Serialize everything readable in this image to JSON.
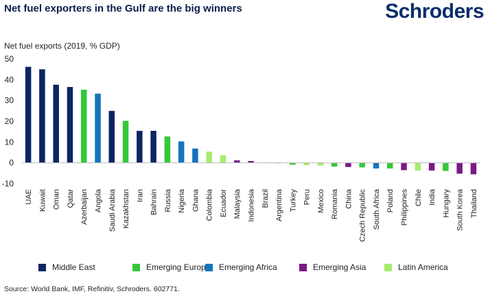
{
  "header": {
    "title": "Net fuel exporters in the Gulf are the big winners",
    "logo": "Schroders"
  },
  "footer": {
    "source": "Source: World Bank, IMF, Refinitiv, Schroders. 602771."
  },
  "colors": {
    "Middle East": "#0c2561",
    "Emerging Europe": "#35c73a",
    "Emerging Africa": "#1474bd",
    "Emerging Asia": "#7d1a85",
    "Latin America": "#a6ec6c"
  },
  "chart_data": {
    "type": "bar",
    "ylabel": "Net fuel exports (2019, % GDP)",
    "ylim": [
      -10,
      50
    ],
    "yticks": [
      50,
      40,
      30,
      20,
      10,
      0,
      -10
    ],
    "grid": false,
    "legend_position": "bottom",
    "legend": [
      "Middle East",
      "Emerging Europe",
      "Emerging Africa",
      "Emerging Asia",
      "Latin America"
    ],
    "categories": [
      "UAE",
      "Kuwait",
      "Oman",
      "Qatar",
      "Azerbaijan",
      "Angola",
      "Saudi Arabia",
      "Kazakhstan",
      "Iran",
      "Bahrain",
      "Russia",
      "Nigeria",
      "Ghana",
      "Colombia",
      "Ecuador",
      "Malaysia",
      "Indonesia",
      "Brazil",
      "Argentina",
      "Turkey",
      "Peru",
      "Mexico",
      "Romania",
      "China",
      "Czech Republic",
      "South Africa",
      "Poland",
      "Philippines",
      "Chile",
      "India",
      "Hungary",
      "South Korea",
      "Thailand"
    ],
    "groups": [
      "Middle East",
      "Middle East",
      "Middle East",
      "Middle East",
      "Emerging Europe",
      "Emerging Africa",
      "Middle East",
      "Emerging Europe",
      "Middle East",
      "Middle East",
      "Emerging Europe",
      "Emerging Africa",
      "Emerging Africa",
      "Latin America",
      "Latin America",
      "Emerging Asia",
      "Emerging Asia",
      "Latin America",
      "Latin America",
      "Emerging Europe",
      "Latin America",
      "Latin America",
      "Emerging Europe",
      "Emerging Asia",
      "Emerging Europe",
      "Emerging Africa",
      "Emerging Europe",
      "Emerging Asia",
      "Latin America",
      "Emerging Asia",
      "Emerging Europe",
      "Emerging Asia",
      "Emerging Asia"
    ],
    "values": [
      46.2,
      45.0,
      37.6,
      36.5,
      35.2,
      33.3,
      25.0,
      20.2,
      15.4,
      15.4,
      12.7,
      10.3,
      6.9,
      5.4,
      3.6,
      1.2,
      0.9,
      0.3,
      -0.2,
      -0.9,
      -1.1,
      -1.3,
      -1.8,
      -2.0,
      -2.2,
      -2.7,
      -2.7,
      -3.5,
      -3.7,
      -3.7,
      -3.9,
      -5.2,
      -5.5
    ]
  }
}
